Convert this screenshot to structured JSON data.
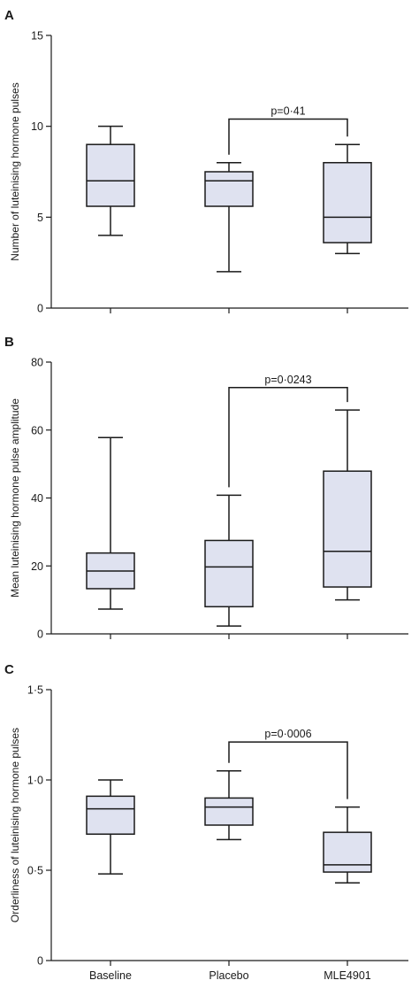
{
  "chart_data": [
    {
      "type": "box",
      "panel": "A",
      "ylabel": "Number of luteinising hormone pulses",
      "ylim": [
        0,
        15
      ],
      "yticks": [
        0,
        5,
        10,
        15
      ],
      "ytick_labels": [
        "0",
        "5",
        "10",
        "15"
      ],
      "categories": [
        "Baseline",
        "Placebo",
        "MLE4901"
      ],
      "boxes": [
        {
          "category": "Baseline",
          "min": 4,
          "q1": 5.6,
          "median": 7,
          "q3": 9,
          "max": 10
        },
        {
          "category": "Placebo",
          "min": 2,
          "q1": 5.6,
          "median": 7,
          "q3": 7.5,
          "max": 8
        },
        {
          "category": "MLE4901",
          "min": 3,
          "q1": 3.6,
          "median": 5,
          "q3": 8,
          "max": 9
        }
      ],
      "comparison": {
        "from": "Placebo",
        "to": "MLE4901",
        "label": "p=0·41",
        "bracket_y": 10.4
      }
    },
    {
      "type": "box",
      "panel": "B",
      "ylabel": "Mean luteinising hormone pulse amplitude",
      "ylim": [
        0,
        80
      ],
      "yticks": [
        0,
        20,
        40,
        60,
        80
      ],
      "ytick_labels": [
        "0",
        "20",
        "40",
        "60",
        "80"
      ],
      "categories": [
        "Baseline",
        "Placebo",
        "MLE4901"
      ],
      "boxes": [
        {
          "category": "Baseline",
          "min": 7.3,
          "q1": 13.3,
          "median": 18.5,
          "q3": 23.8,
          "max": 57.8
        },
        {
          "category": "Placebo",
          "min": 2.3,
          "q1": 8,
          "median": 19.7,
          "q3": 27.5,
          "max": 40.8
        },
        {
          "category": "MLE4901",
          "min": 10,
          "q1": 13.8,
          "median": 24.3,
          "q3": 47.9,
          "max": 65.9
        }
      ],
      "comparison": {
        "from": "Placebo",
        "to": "MLE4901",
        "label": "p=0·0243",
        "bracket_y": 72.5
      }
    },
    {
      "type": "box",
      "panel": "C",
      "ylabel": "Orderliness of luteinising hormone pulses",
      "ylim": [
        0,
        1.5
      ],
      "yticks": [
        0,
        0.5,
        1.0,
        1.5
      ],
      "ytick_labels": [
        "0",
        "0·5",
        "1·0",
        "1·5"
      ],
      "categories": [
        "Baseline",
        "Placebo",
        "MLE4901"
      ],
      "xtick_labels": [
        "Baseline",
        "Placebo",
        "MLE4901"
      ],
      "boxes": [
        {
          "category": "Baseline",
          "min": 0.48,
          "q1": 0.7,
          "median": 0.84,
          "q3": 0.91,
          "max": 1.0
        },
        {
          "category": "Placebo",
          "min": 0.67,
          "q1": 0.75,
          "median": 0.85,
          "q3": 0.9,
          "max": 1.05
        },
        {
          "category": "MLE4901",
          "min": 0.43,
          "q1": 0.49,
          "median": 0.53,
          "q3": 0.71,
          "max": 0.85
        }
      ],
      "comparison": {
        "from": "Placebo",
        "to": "MLE4901",
        "label": "p=0·0006",
        "bracket_y": 1.21
      }
    }
  ],
  "style": {
    "box_fill": "#dfe2f0",
    "line_color": "#1a1a1a"
  }
}
